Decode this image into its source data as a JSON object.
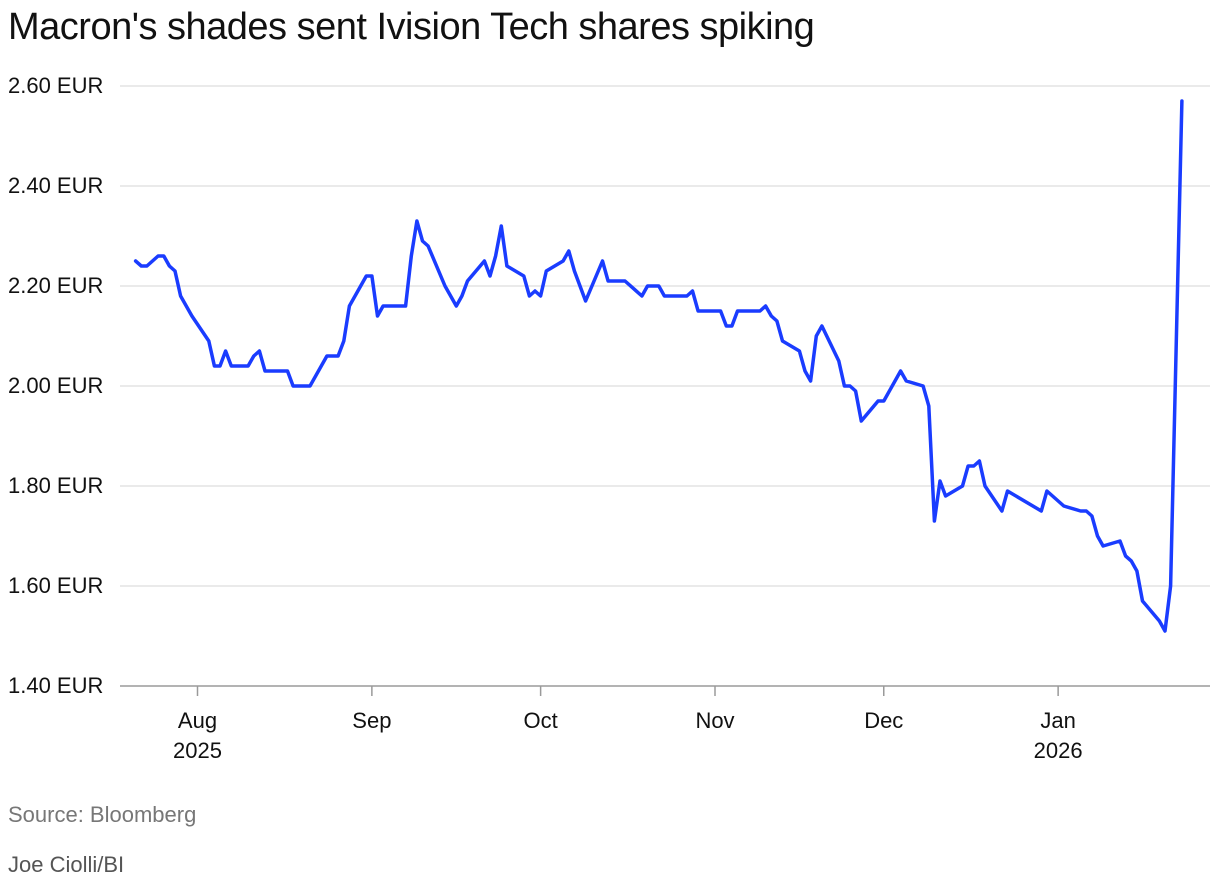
{
  "chart_data": {
    "type": "line",
    "title": "Macron's shades sent Ivision Tech shares spiking",
    "xlabel": "",
    "ylabel": "",
    "ylim": [
      1.4,
      2.6
    ],
    "y_ticks": [
      "1.40 EUR",
      "1.60 EUR",
      "1.80 EUR",
      "2.00 EUR",
      "2.20 EUR",
      "2.40 EUR",
      "2.60 EUR"
    ],
    "y_tick_values": [
      1.4,
      1.6,
      1.8,
      2.0,
      2.2,
      2.4,
      2.6
    ],
    "grid": "horizontal",
    "xlim": [
      "2025-07-20",
      "2026-01-28"
    ],
    "x_ticks": [
      {
        "date": "2025-08-01",
        "label": "Aug",
        "year": "2025"
      },
      {
        "date": "2025-09-01",
        "label": "Sep",
        "year": ""
      },
      {
        "date": "2025-10-01",
        "label": "Oct",
        "year": ""
      },
      {
        "date": "2025-11-01",
        "label": "Nov",
        "year": ""
      },
      {
        "date": "2025-12-01",
        "label": "Dec",
        "year": ""
      },
      {
        "date": "2026-01-01",
        "label": "Jan",
        "year": "2026"
      }
    ],
    "series": [
      {
        "color": "#1a3cff",
        "points": [
          [
            "2025-07-21",
            2.25
          ],
          [
            "2025-07-22",
            2.24
          ],
          [
            "2025-07-23",
            2.24
          ],
          [
            "2025-07-24",
            2.25
          ],
          [
            "2025-07-25",
            2.26
          ],
          [
            "2025-07-26",
            2.26
          ],
          [
            "2025-07-27",
            2.24
          ],
          [
            "2025-07-28",
            2.23
          ],
          [
            "2025-07-29",
            2.18
          ],
          [
            "2025-07-31",
            2.14
          ],
          [
            "2025-08-03",
            2.09
          ],
          [
            "2025-08-04",
            2.04
          ],
          [
            "2025-08-05",
            2.04
          ],
          [
            "2025-08-06",
            2.07
          ],
          [
            "2025-08-07",
            2.04
          ],
          [
            "2025-08-10",
            2.04
          ],
          [
            "2025-08-11",
            2.06
          ],
          [
            "2025-08-12",
            2.07
          ],
          [
            "2025-08-13",
            2.03
          ],
          [
            "2025-08-17",
            2.03
          ],
          [
            "2025-08-18",
            2.0
          ],
          [
            "2025-08-21",
            2.0
          ],
          [
            "2025-08-24",
            2.06
          ],
          [
            "2025-08-26",
            2.06
          ],
          [
            "2025-08-27",
            2.09
          ],
          [
            "2025-08-28",
            2.16
          ],
          [
            "2025-08-31",
            2.22
          ],
          [
            "2025-09-01",
            2.22
          ],
          [
            "2025-09-02",
            2.14
          ],
          [
            "2025-09-03",
            2.16
          ],
          [
            "2025-09-07",
            2.16
          ],
          [
            "2025-09-08",
            2.26
          ],
          [
            "2025-09-09",
            2.33
          ],
          [
            "2025-09-10",
            2.29
          ],
          [
            "2025-09-11",
            2.28
          ],
          [
            "2025-09-14",
            2.2
          ],
          [
            "2025-09-16",
            2.16
          ],
          [
            "2025-09-17",
            2.18
          ],
          [
            "2025-09-18",
            2.21
          ],
          [
            "2025-09-21",
            2.25
          ],
          [
            "2025-09-22",
            2.22
          ],
          [
            "2025-09-23",
            2.26
          ],
          [
            "2025-09-24",
            2.32
          ],
          [
            "2025-09-25",
            2.24
          ],
          [
            "2025-09-28",
            2.22
          ],
          [
            "2025-09-29",
            2.18
          ],
          [
            "2025-09-30",
            2.19
          ],
          [
            "2025-10-01",
            2.18
          ],
          [
            "2025-10-02",
            2.23
          ],
          [
            "2025-10-05",
            2.25
          ],
          [
            "2025-10-06",
            2.27
          ],
          [
            "2025-10-07",
            2.23
          ],
          [
            "2025-10-09",
            2.17
          ],
          [
            "2025-10-12",
            2.25
          ],
          [
            "2025-10-13",
            2.21
          ],
          [
            "2025-10-16",
            2.21
          ],
          [
            "2025-10-19",
            2.18
          ],
          [
            "2025-10-20",
            2.2
          ],
          [
            "2025-10-22",
            2.2
          ],
          [
            "2025-10-23",
            2.18
          ],
          [
            "2025-10-27",
            2.18
          ],
          [
            "2025-10-28",
            2.19
          ],
          [
            "2025-10-29",
            2.15
          ],
          [
            "2025-11-02",
            2.15
          ],
          [
            "2025-11-03",
            2.12
          ],
          [
            "2025-11-04",
            2.12
          ],
          [
            "2025-11-05",
            2.15
          ],
          [
            "2025-11-09",
            2.15
          ],
          [
            "2025-11-10",
            2.16
          ],
          [
            "2025-11-11",
            2.14
          ],
          [
            "2025-11-12",
            2.13
          ],
          [
            "2025-11-13",
            2.09
          ],
          [
            "2025-11-16",
            2.07
          ],
          [
            "2025-11-17",
            2.03
          ],
          [
            "2025-11-18",
            2.01
          ],
          [
            "2025-11-19",
            2.1
          ],
          [
            "2025-11-20",
            2.12
          ],
          [
            "2025-11-23",
            2.05
          ],
          [
            "2025-11-24",
            2.0
          ],
          [
            "2025-11-25",
            2.0
          ],
          [
            "2025-11-26",
            1.99
          ],
          [
            "2025-11-27",
            1.93
          ],
          [
            "2025-11-30",
            1.97
          ],
          [
            "2025-12-01",
            1.97
          ],
          [
            "2025-12-03",
            2.01
          ],
          [
            "2025-12-04",
            2.03
          ],
          [
            "2025-12-05",
            2.01
          ],
          [
            "2025-12-08",
            2.0
          ],
          [
            "2025-12-09",
            1.96
          ],
          [
            "2025-12-10",
            1.73
          ],
          [
            "2025-12-11",
            1.81
          ],
          [
            "2025-12-12",
            1.78
          ],
          [
            "2025-12-15",
            1.8
          ],
          [
            "2025-12-16",
            1.84
          ],
          [
            "2025-12-17",
            1.84
          ],
          [
            "2025-12-18",
            1.85
          ],
          [
            "2025-12-19",
            1.8
          ],
          [
            "2025-12-22",
            1.75
          ],
          [
            "2025-12-23",
            1.79
          ],
          [
            "2025-12-29",
            1.75
          ],
          [
            "2025-12-30",
            1.79
          ],
          [
            "2026-01-02",
            1.76
          ],
          [
            "2026-01-05",
            1.75
          ],
          [
            "2026-01-06",
            1.75
          ],
          [
            "2026-01-07",
            1.74
          ],
          [
            "2026-01-08",
            1.7
          ],
          [
            "2026-01-09",
            1.68
          ],
          [
            "2026-01-12",
            1.69
          ],
          [
            "2026-01-13",
            1.66
          ],
          [
            "2026-01-14",
            1.65
          ],
          [
            "2026-01-15",
            1.63
          ],
          [
            "2026-01-16",
            1.57
          ],
          [
            "2026-01-19",
            1.53
          ],
          [
            "2026-01-20",
            1.51
          ],
          [
            "2026-01-21",
            1.6
          ],
          [
            "2026-01-23",
            2.57
          ]
        ]
      }
    ]
  },
  "footer": {
    "source": "Source: Bloomberg",
    "credit": "Joe Ciolli/BI"
  }
}
